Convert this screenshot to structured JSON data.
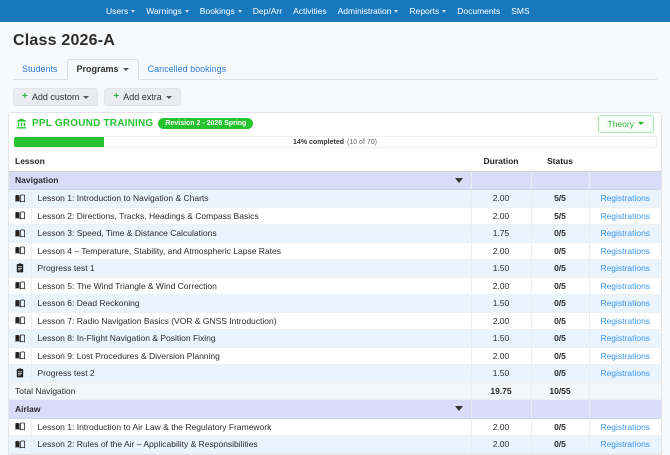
{
  "navbar": {
    "items": [
      {
        "label": "Users",
        "caret": true
      },
      {
        "label": "Warnings",
        "caret": true
      },
      {
        "label": "Bookings",
        "caret": true
      },
      {
        "label": "Dep/Arr",
        "caret": false
      },
      {
        "label": "Activities",
        "caret": false
      },
      {
        "label": "Administration",
        "caret": true
      },
      {
        "label": "Reports",
        "caret": true
      },
      {
        "label": "Documents",
        "caret": false
      },
      {
        "label": "SMS",
        "caret": false
      }
    ]
  },
  "page": {
    "title": "Class 2026-A"
  },
  "tabs": [
    {
      "label": "Students",
      "active": false,
      "caret": false
    },
    {
      "label": "Programs",
      "active": true,
      "caret": true
    },
    {
      "label": "Cancelled bookings",
      "active": false,
      "caret": false
    }
  ],
  "actions": {
    "add_custom_label": "Add custom",
    "add_extra_label": "Add extra"
  },
  "program": {
    "title": "PPL GROUND TRAINING",
    "revision_badge": "Revision 2 - 2026 Spring",
    "theory_button": "Theory",
    "progress": {
      "percent": 14,
      "completed_text": "14% completed",
      "count_text": "(10 of 70)"
    }
  },
  "table": {
    "columns": {
      "lesson": "Lesson",
      "duration": "Duration",
      "status": "Status"
    },
    "registrations_label": "Registrations",
    "sections": [
      {
        "name": "Navigation",
        "rows": [
          {
            "icon": "book",
            "title": "Lesson 1: Introduction to Navigation & Charts",
            "duration": "2.00",
            "status": "5/5"
          },
          {
            "icon": "book",
            "title": "Lesson 2: Directions, Tracks, Headings & Compass Basics",
            "duration": "2.00",
            "status": "5/5"
          },
          {
            "icon": "book",
            "title": "Lesson 3: Speed, Time & Distance Calculations",
            "duration": "1.75",
            "status": "0/5"
          },
          {
            "icon": "book",
            "title": "Lesson 4 – Temperature, Stability, and Atmospheric Lapse Rates",
            "duration": "2.00",
            "status": "0/5"
          },
          {
            "icon": "clipboard",
            "title": "Progress test 1",
            "duration": "1.50",
            "status": "0/5"
          },
          {
            "icon": "book",
            "title": "Lesson 5: The Wind Triangle & Wind Correction",
            "duration": "2.00",
            "status": "0/5"
          },
          {
            "icon": "book",
            "title": "Lesson 6: Dead Reckoning",
            "duration": "1.50",
            "status": "0/5"
          },
          {
            "icon": "book",
            "title": "Lesson 7: Radio Navigation Basics (VOR & GNSS Introduction)",
            "duration": "2.00",
            "status": "0/5"
          },
          {
            "icon": "book",
            "title": "Lesson 8: In-Flight Navigation & Position Fixing",
            "duration": "1.50",
            "status": "0/5"
          },
          {
            "icon": "book",
            "title": "Lesson 9: Lost Procedures & Diversion Planning",
            "duration": "2.00",
            "status": "0/5"
          },
          {
            "icon": "clipboard",
            "title": "Progress test 2",
            "duration": "1.50",
            "status": "0/5"
          }
        ],
        "total": {
          "label": "Total Navigation",
          "duration": "19.75",
          "status": "10/55"
        }
      },
      {
        "name": "Airlaw",
        "rows": [
          {
            "icon": "book",
            "title": "Lesson 1: Introduction to Air Law & the Regulatory Framework",
            "duration": "2.00",
            "status": "0/5"
          },
          {
            "icon": "book",
            "title": "Lesson 2: Rules of the Air – Applicability & Responsibilities",
            "duration": "2.00",
            "status": "0/5"
          }
        ]
      }
    ]
  },
  "colors": {
    "navbar_blue": "#1878be",
    "accent_green": "#25c32f",
    "link_blue": "#3b96ee",
    "section_purple": "#d9dcf6",
    "stripe_blue": "#eaf4fc"
  }
}
